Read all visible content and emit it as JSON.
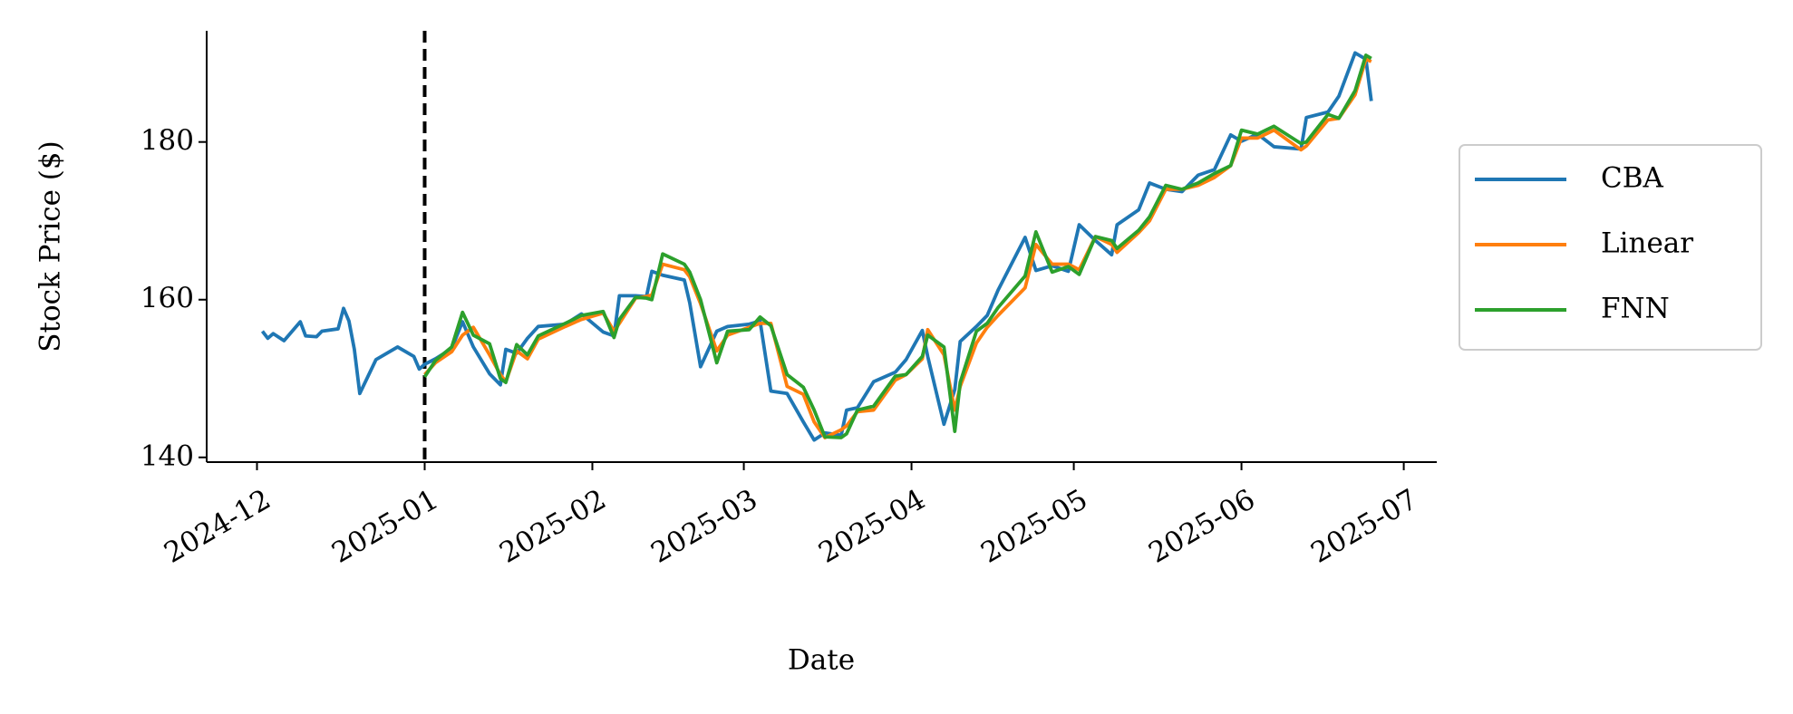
{
  "chart_data": {
    "type": "line",
    "x_label": "Date",
    "y_label": "Stock Price ($)",
    "x": [
      1,
      2,
      3,
      5,
      8,
      9,
      11,
      12,
      15,
      16,
      17,
      18,
      19,
      22,
      26,
      29,
      30,
      31,
      33,
      36,
      38,
      40,
      43,
      45,
      46,
      48,
      50,
      52,
      57,
      60,
      64,
      66,
      67,
      70,
      72,
      73,
      75,
      79,
      80,
      82,
      85,
      87,
      91,
      93,
      95,
      98,
      101,
      103,
      105,
      108,
      109,
      111,
      114,
      118,
      120,
      123,
      124,
      127,
      129,
      130,
      133,
      135,
      137,
      142,
      144,
      147,
      150,
      152,
      155,
      158,
      159,
      163,
      165,
      168,
      171,
      174,
      177,
      180,
      182,
      185,
      188,
      193,
      194,
      198,
      200,
      203,
      205,
      206
    ],
    "series": [
      {
        "name": "CBA",
        "color": "#1f77b4",
        "values": [
          156.0,
          155.1,
          155.7,
          154.8,
          157.2,
          155.4,
          155.3,
          156.0,
          156.3,
          158.9,
          157.3,
          153.7,
          148.1,
          152.4,
          154.0,
          152.8,
          151.2,
          151.8,
          152.5,
          153.8,
          157.2,
          154.0,
          150.6,
          149.2,
          153.7,
          153.2,
          155.1,
          156.6,
          156.9,
          158.2,
          155.9,
          155.4,
          160.5,
          160.5,
          160.4,
          163.6,
          163.1,
          162.5,
          159.6,
          151.5,
          156.0,
          156.6,
          156.9,
          157.3,
          148.4,
          148.1,
          144.5,
          142.2,
          143.1,
          142.8,
          146.0,
          146.3,
          149.6,
          150.8,
          152.4,
          156.1,
          152.8,
          144.2,
          148.6,
          154.7,
          156.6,
          158.0,
          161.2,
          167.9,
          163.7,
          164.3,
          163.6,
          169.5,
          167.5,
          165.7,
          169.5,
          171.4,
          174.8,
          174.0,
          173.7,
          175.8,
          176.5,
          180.9,
          180.1,
          181.0,
          179.4,
          179.1,
          183.1,
          183.8,
          185.8,
          191.3,
          190.5,
          185.2
        ]
      },
      {
        "name": "Linear",
        "color": "#ff7f0e",
        "values": [
          null,
          null,
          null,
          null,
          null,
          null,
          null,
          null,
          null,
          null,
          null,
          null,
          null,
          null,
          null,
          null,
          null,
          150.5,
          152.0,
          153.4,
          155.5,
          156.5,
          153.0,
          150.5,
          149.6,
          153.5,
          152.5,
          155.0,
          156.6,
          157.5,
          158.3,
          156.0,
          157.0,
          160.2,
          160.4,
          160.6,
          164.5,
          163.8,
          162.9,
          159.5,
          153.5,
          155.5,
          156.5,
          157.0,
          157.0,
          149.0,
          148.0,
          144.5,
          142.5,
          143.5,
          144.0,
          145.8,
          146.0,
          149.8,
          150.5,
          152.5,
          156.2,
          153.0,
          146.0,
          149.0,
          154.5,
          156.5,
          158.0,
          161.5,
          167.0,
          164.5,
          164.5,
          163.8,
          168.0,
          167.0,
          166.0,
          168.5,
          170.0,
          174.0,
          174.0,
          174.5,
          175.5,
          177.0,
          180.5,
          180.5,
          181.5,
          179.0,
          179.5,
          182.8,
          183.0,
          186.0,
          190.5,
          190.2
        ]
      },
      {
        "name": "FNN",
        "color": "#2ca02c",
        "values": [
          null,
          null,
          null,
          null,
          null,
          null,
          null,
          null,
          null,
          null,
          null,
          null,
          null,
          null,
          null,
          null,
          null,
          150.2,
          152.3,
          154.0,
          158.4,
          155.5,
          154.4,
          150.0,
          149.5,
          154.3,
          153.0,
          155.4,
          157.0,
          158.0,
          158.5,
          155.2,
          157.5,
          160.3,
          160.2,
          160.0,
          165.8,
          164.5,
          163.5,
          160.0,
          152.0,
          156.0,
          156.2,
          157.8,
          156.7,
          150.5,
          148.9,
          146.0,
          142.6,
          142.5,
          143.0,
          146.0,
          146.5,
          150.3,
          150.5,
          152.8,
          155.5,
          154.0,
          143.3,
          149.5,
          156.0,
          157.0,
          159.0,
          163.0,
          168.6,
          163.5,
          164.2,
          163.2,
          168.0,
          167.5,
          166.5,
          168.8,
          170.5,
          174.5,
          174.0,
          174.8,
          176.0,
          177.0,
          181.5,
          181.0,
          182.0,
          179.8,
          180.0,
          183.5,
          183.0,
          186.5,
          191.0,
          190.6
        ]
      }
    ],
    "split_x": 31,
    "xlim": [
      -9.3,
      218.1
    ],
    "xticks": [
      {
        "value": 0,
        "label": "2024-12"
      },
      {
        "value": 31,
        "label": "2025-01"
      },
      {
        "value": 62,
        "label": "2025-02"
      },
      {
        "value": 90,
        "label": "2025-03"
      },
      {
        "value": 121,
        "label": "2025-04"
      },
      {
        "value": 151,
        "label": "2025-05"
      },
      {
        "value": 182,
        "label": "2025-06"
      },
      {
        "value": 212,
        "label": "2025-07"
      }
    ],
    "ylim": [
      139.4,
      194.1
    ],
    "yticks": [
      140,
      160,
      180
    ],
    "grid": false,
    "legend": "right"
  }
}
